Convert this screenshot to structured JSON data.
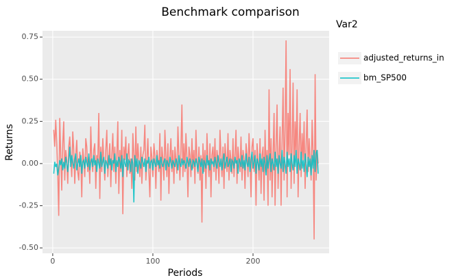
{
  "chart_data": {
    "type": "line",
    "title": "Benchmark comparison",
    "x_label": "Periods",
    "y_label": "Returns",
    "legend_title": "Var2",
    "legend_position": "right",
    "grid": true,
    "xlim": [
      -10.2,
      276
    ],
    "ylim": [
      -0.532,
      0.787
    ],
    "xticks": [
      0,
      100,
      200
    ],
    "yticks": [
      {
        "value": -0.5,
        "label": "-0.50"
      },
      -0.25,
      {
        "value": 0,
        "label": "0.00"
      },
      0.25,
      {
        "value": 0.5,
        "label": "0.50"
      },
      0.75
    ],
    "x": [
      1,
      2,
      3,
      4,
      5,
      6,
      7,
      8,
      9,
      10,
      11,
      12,
      13,
      14,
      15,
      16,
      17,
      18,
      19,
      20,
      21,
      22,
      23,
      24,
      25,
      26,
      27,
      28,
      29,
      30,
      31,
      32,
      33,
      34,
      35,
      36,
      37,
      38,
      39,
      40,
      41,
      42,
      43,
      44,
      45,
      46,
      47,
      48,
      49,
      50,
      51,
      52,
      53,
      54,
      55,
      56,
      57,
      58,
      59,
      60,
      61,
      62,
      63,
      64,
      65,
      66,
      67,
      68,
      69,
      70,
      71,
      72,
      73,
      74,
      75,
      76,
      77,
      78,
      79,
      80,
      81,
      82,
      83,
      84,
      85,
      86,
      87,
      88,
      89,
      90,
      91,
      92,
      93,
      94,
      95,
      96,
      97,
      98,
      99,
      100,
      101,
      102,
      103,
      104,
      105,
      106,
      107,
      108,
      109,
      110,
      111,
      112,
      113,
      114,
      115,
      116,
      117,
      118,
      119,
      120,
      121,
      122,
      123,
      124,
      125,
      126,
      127,
      128,
      129,
      130,
      131,
      132,
      133,
      134,
      135,
      136,
      137,
      138,
      139,
      140,
      141,
      142,
      143,
      144,
      145,
      146,
      147,
      148,
      149,
      150,
      151,
      152,
      153,
      154,
      155,
      156,
      157,
      158,
      159,
      160,
      161,
      162,
      163,
      164,
      165,
      166,
      167,
      168,
      169,
      170,
      171,
      172,
      173,
      174,
      175,
      176,
      177,
      178,
      179,
      180,
      181,
      182,
      183,
      184,
      185,
      186,
      187,
      188,
      189,
      190,
      191,
      192,
      193,
      194,
      195,
      196,
      197,
      198,
      199,
      200,
      201,
      202,
      203,
      204,
      205,
      206,
      207,
      208,
      209,
      210,
      211,
      212,
      213,
      214,
      215,
      216,
      217,
      218,
      219,
      220,
      221,
      222,
      223,
      224,
      225,
      226,
      227,
      228,
      229,
      230,
      231,
      232,
      233,
      234,
      235,
      236,
      237,
      238,
      239,
      240,
      241,
      242,
      243,
      244,
      245,
      246,
      247,
      248,
      249,
      250,
      251,
      252,
      253,
      254,
      255,
      256,
      257,
      258,
      259,
      260,
      261,
      262,
      263,
      264,
      265
    ],
    "series": [
      {
        "name": "adjusted_returns_in",
        "color": "#F8766D",
        "values": [
          0.2,
          0.1,
          0.26,
          0.12,
          -0.05,
          -0.31,
          0.27,
          0.05,
          -0.16,
          0.12,
          0.25,
          -0.1,
          0.08,
          0.02,
          -0.12,
          0.1,
          0.16,
          0.03,
          -0.08,
          0.19,
          0.08,
          -0.12,
          0.05,
          0.14,
          -0.05,
          -0.1,
          0.07,
          0.03,
          -0.2,
          0.09,
          0.02,
          -0.08,
          0.15,
          0.1,
          -0.05,
          0.04,
          -0.12,
          0.22,
          0.01,
          -0.05,
          0.08,
          0.12,
          -0.15,
          0.05,
          0.02,
          0.3,
          -0.21,
          0.1,
          -0.05,
          0.15,
          0.02,
          -0.1,
          0.08,
          0.2,
          -0.08,
          0.03,
          0.12,
          -0.14,
          0.05,
          0.18,
          -0.05,
          0.1,
          -0.12,
          0.05,
          0.25,
          -0.18,
          0.08,
          -0.05,
          0.2,
          -0.3,
          0.1,
          0.02,
          0.16,
          -0.08,
          0.05,
          0.12,
          -0.06,
          0.03,
          -0.15,
          0.18,
          0.05,
          -0.1,
          0.22,
          -0.05,
          0.12,
          0.02,
          -0.08,
          0.1,
          -0.12,
          0.05,
          0.08,
          0.23,
          -0.1,
          0.02,
          0.15,
          -0.05,
          -0.2,
          0.1,
          0.04,
          -0.08,
          0.12,
          0.05,
          -0.15,
          0.08,
          0.02,
          -0.05,
          0.18,
          -0.22,
          0.1,
          0.03,
          -0.1,
          0.2,
          0.05,
          -0.08,
          0.12,
          -0.18,
          0.04,
          0.15,
          -0.05,
          0.08,
          -0.12,
          0.1,
          0.02,
          -0.06,
          0.22,
          0.05,
          -0.1,
          0.08,
          0.35,
          -0.08,
          0.12,
          -0.05,
          0.18,
          0.03,
          -0.2,
          0.1,
          0.05,
          -0.08,
          0.15,
          -0.03,
          0.08,
          -0.12,
          0.2,
          0.02,
          -0.06,
          0.1,
          -0.1,
          0.05,
          -0.35,
          0.12,
          -0.05,
          0.08,
          -0.15,
          0.18,
          0.02,
          -0.08,
          0.12,
          -0.2,
          0.05,
          0.1,
          -0.05,
          0.15,
          -0.1,
          0.08,
          0.02,
          -0.12,
          0.2,
          0.05,
          -0.08,
          0.1,
          -0.15,
          0.12,
          0.03,
          -0.05,
          0.18,
          -0.1,
          0.08,
          0.02,
          -0.06,
          0.15,
          -0.08,
          0.05,
          0.2,
          -0.12,
          0.1,
          0.02,
          -0.05,
          0.16,
          -0.1,
          0.08,
          0.03,
          -0.15,
          0.12,
          0.05,
          -0.08,
          0.18,
          0.02,
          -0.2,
          0.1,
          0.15,
          -0.05,
          0.08,
          -0.25,
          0.12,
          0.02,
          -0.1,
          0.15,
          -0.18,
          0.05,
          0.1,
          -0.22,
          0.2,
          -0.05,
          0.08,
          -0.25,
          0.44,
          -0.1,
          0.15,
          -0.2,
          0.05,
          0.3,
          -0.25,
          0.1,
          0.35,
          -0.15,
          0.05,
          0.22,
          -0.25,
          0.12,
          0.45,
          -0.1,
          0.2,
          0.73,
          -0.2,
          0.3,
          0.05,
          0.56,
          -0.15,
          0.1,
          0.48,
          -0.12,
          0.25,
          0.05,
          0.44,
          -0.2,
          0.1,
          0.3,
          -0.08,
          0.18,
          0.02,
          0.25,
          -0.15,
          0.1,
          0.32,
          -0.05,
          0.15,
          0.02,
          -0.1,
          0.26,
          0.05,
          -0.45,
          0.53,
          -0.1,
          0.08,
          0.0
        ]
      },
      {
        "name": "bm_SP500",
        "color": "#00BFC4",
        "values": [
          -0.06,
          0.01,
          -0.02,
          0.0,
          -0.07,
          -0.03,
          0.02,
          -0.01,
          0.03,
          -0.04,
          0.01,
          -0.03,
          0.04,
          0.0,
          -0.05,
          0.02,
          0.1,
          -0.02,
          0.05,
          0.01,
          -0.03,
          0.02,
          0.06,
          -0.04,
          0.0,
          0.03,
          -0.02,
          0.05,
          -0.06,
          0.01,
          0.02,
          -0.03,
          0.04,
          0.0,
          -0.02,
          0.06,
          -0.04,
          0.01,
          0.03,
          -0.02,
          0.05,
          -0.01,
          0.02,
          -0.05,
          0.03,
          0.0,
          -0.03,
          0.07,
          -0.02,
          0.01,
          0.04,
          -0.06,
          0.02,
          0.0,
          -0.03,
          0.05,
          -0.01,
          0.03,
          -0.04,
          0.02,
          0.0,
          0.06,
          -0.05,
          0.02,
          -0.02,
          0.04,
          0.01,
          -0.03,
          0.05,
          -0.08,
          0.03,
          0.0,
          -0.02,
          0.06,
          -0.04,
          0.02,
          0.01,
          -0.05,
          0.03,
          0.0,
          -0.23,
          0.05,
          -0.02,
          0.03,
          -0.06,
          0.02,
          0.0,
          -0.03,
          0.04,
          0.01,
          -0.02,
          0.03,
          -0.05,
          0.02,
          0.0,
          0.04,
          -0.03,
          0.01,
          0.02,
          -0.04,
          0.03,
          0.0,
          -0.02,
          0.05,
          -0.01,
          0.02,
          -0.03,
          0.04,
          0.0,
          -0.02,
          0.01,
          0.03,
          -0.04,
          0.02,
          0.0,
          -0.02,
          0.04,
          0.01,
          -0.03,
          0.02,
          0.0,
          -0.02,
          0.03,
          0.01,
          -0.04,
          0.05,
          0.0,
          -0.02,
          0.03,
          -0.01,
          0.02,
          0.0,
          -0.03,
          0.04,
          0.01,
          -0.02,
          0.03,
          0.0,
          -0.04,
          0.02,
          0.01,
          -0.02,
          0.03,
          0.0,
          -0.05,
          0.04,
          0.01,
          -0.02,
          0.03,
          -0.06,
          0.02,
          0.0,
          -0.03,
          0.05,
          -0.01,
          0.02,
          -0.04,
          0.03,
          0.0,
          0.01,
          -0.02,
          0.04,
          0.0,
          -0.03,
          0.05,
          0.01,
          -0.02,
          0.03,
          -0.04,
          0.02,
          0.06,
          -0.03,
          0.01,
          0.04,
          -0.02,
          0.0,
          0.03,
          -0.05,
          0.02,
          0.01,
          -0.03,
          0.04,
          0.0,
          0.02,
          -0.06,
          0.03,
          0.01,
          -0.02,
          0.05,
          -0.03,
          0.02,
          -0.04,
          0.06,
          0.0,
          -0.02,
          0.04,
          -0.05,
          0.02,
          0.07,
          -0.03,
          0.01,
          0.05,
          -0.06,
          0.03,
          0.0,
          -0.04,
          0.06,
          -0.02,
          0.03,
          -0.05,
          0.04,
          0.0,
          -0.07,
          0.05,
          -0.03,
          0.02,
          0.06,
          -0.05,
          0.03,
          0.0,
          -0.04,
          0.07,
          -0.02,
          0.03,
          -0.06,
          0.05,
          0.0,
          -0.03,
          0.08,
          -0.05,
          0.04,
          0.0,
          -0.06,
          0.07,
          -0.02,
          0.03,
          -0.05,
          0.06,
          0.0,
          -0.04,
          0.05,
          -0.02,
          0.08,
          -0.06,
          0.03,
          0.0,
          -0.04,
          0.07,
          -0.03,
          0.02,
          -0.05,
          0.06,
          0.0,
          -0.08,
          0.04,
          -0.02,
          0.03,
          -0.07,
          0.05,
          -0.03,
          0.08,
          -0.05,
          0.06,
          0.08,
          -0.06
        ]
      }
    ]
  }
}
